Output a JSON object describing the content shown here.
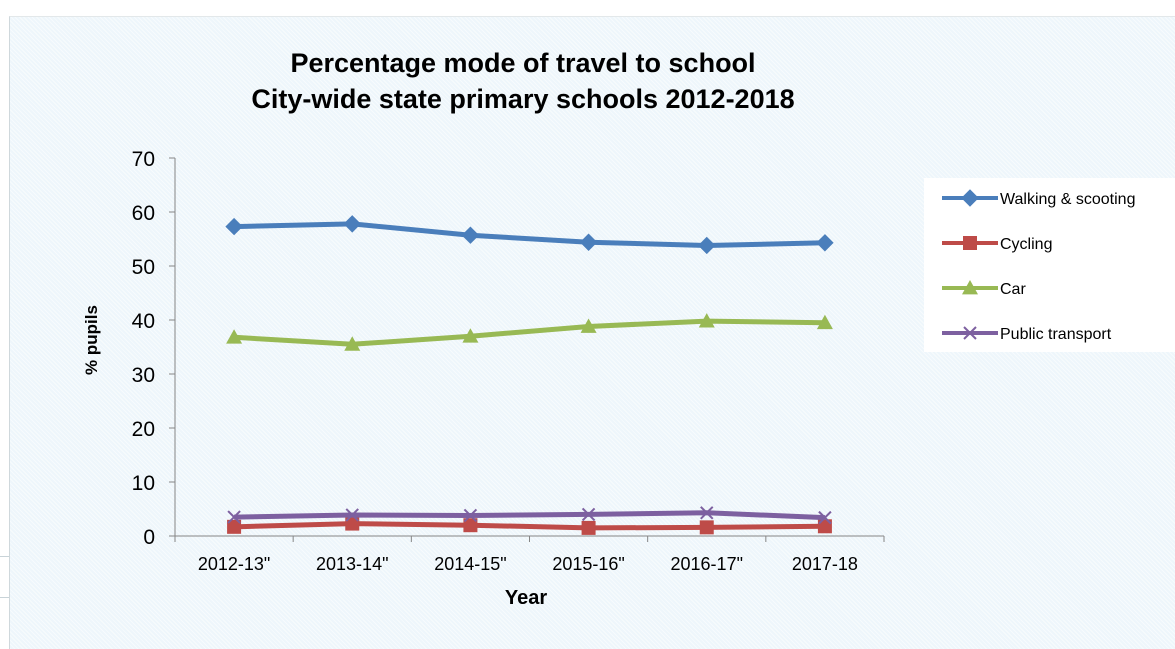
{
  "chart_data": {
    "type": "line",
    "title": "Percentage mode of travel to school",
    "subtitle": "City-wide state primary schools 2012-2018",
    "xlabel": "Year",
    "ylabel": "% pupils",
    "ylim": [
      0,
      70
    ],
    "yticks": [
      0,
      10,
      20,
      30,
      40,
      50,
      60,
      70
    ],
    "grid": false,
    "legend_position": "right",
    "categories": [
      "2012-13\"",
      "2013-14\"",
      "2014-15\"",
      "2015-16\"",
      "2016-17\"",
      "2017-18"
    ],
    "series": [
      {
        "name": "Walking & scooting",
        "color": "#4a7ebb",
        "marker": "diamond",
        "values": [
          57.3,
          57.8,
          55.7,
          54.4,
          53.8,
          54.3
        ]
      },
      {
        "name": "Cycling",
        "color": "#be4b48",
        "marker": "square",
        "values": [
          1.7,
          2.3,
          2.0,
          1.5,
          1.6,
          1.8
        ]
      },
      {
        "name": "Car",
        "color": "#98b954",
        "marker": "triangle",
        "values": [
          36.8,
          35.5,
          37.0,
          38.8,
          39.8,
          39.5
        ]
      },
      {
        "name": "Public transport",
        "color": "#7d60a0",
        "marker": "x",
        "values": [
          3.5,
          3.9,
          3.8,
          4.0,
          4.3,
          3.4
        ]
      }
    ]
  }
}
